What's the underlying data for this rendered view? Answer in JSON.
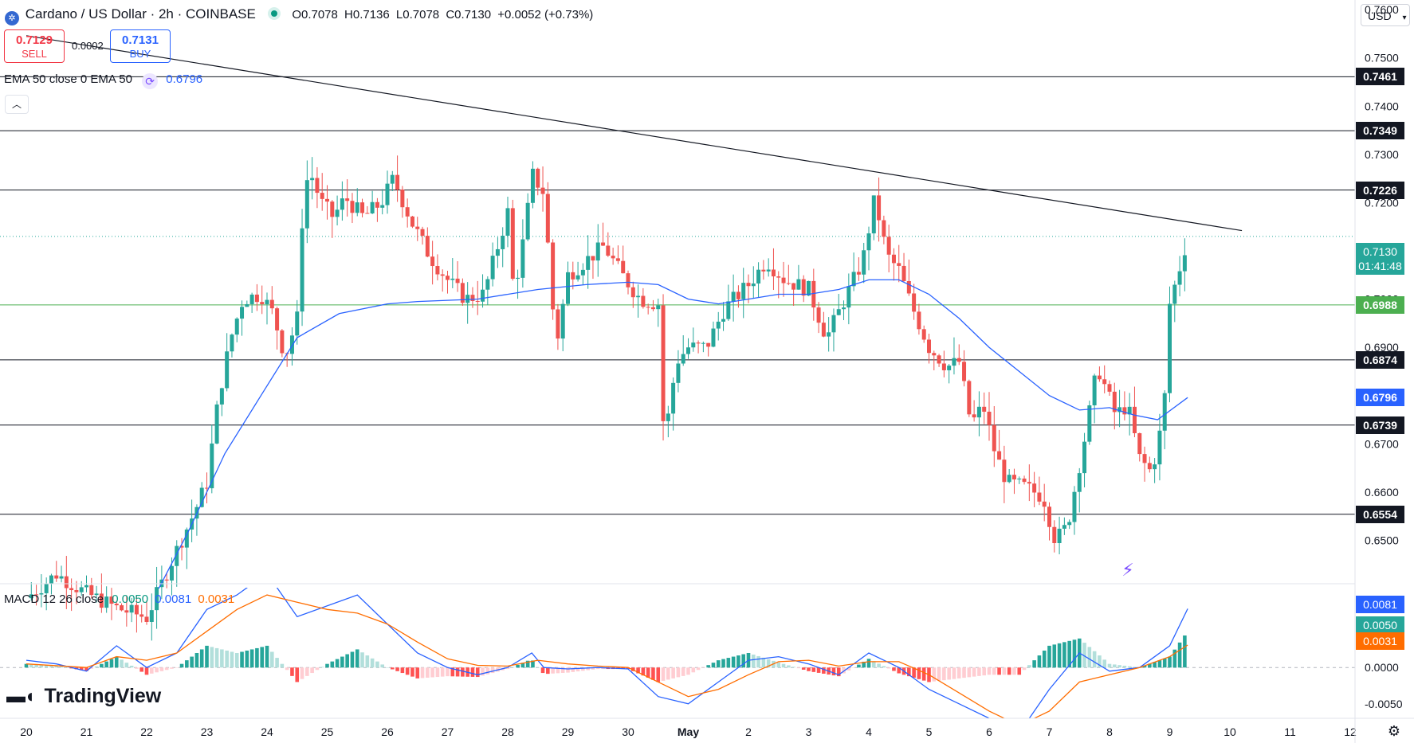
{
  "header": {
    "title": "Cardano / US Dollar · 2h · COINBASE",
    "ohlc": {
      "o": "O0.7078",
      "h": "H0.7136",
      "l": "L0.7078",
      "c": "C0.7130",
      "chg": "+0.0052 (+0.73%)"
    },
    "sell_price": "0.7129",
    "sell_label": "SELL",
    "spread": "0.0002",
    "buy_price": "0.7131",
    "buy_label": "BUY",
    "currency": "USD"
  },
  "ema_legend": {
    "label": "EMA 50 close 0 EMA 50",
    "value": "0.6796"
  },
  "macd_legend": {
    "label": "MACD 12 26 close",
    "hist": "0.0050",
    "macd": "0.0081",
    "signal": "0.0031"
  },
  "current": {
    "price": "0.7130",
    "countdown": "01:41:48"
  },
  "logo_text": "TradingView",
  "colors": {
    "up": "#26a69a",
    "down": "#ef5350",
    "ema": "#2962ff",
    "signal": "#ff6d00"
  },
  "chart_data": {
    "type": "candlestick",
    "ylim": [
      0.641,
      0.762
    ],
    "y_ticks": [
      "0.7600",
      "0.7500",
      "0.7400",
      "0.7300",
      "0.7200",
      "0.7000",
      "0.6900",
      "0.6700",
      "0.6600",
      "0.6500"
    ],
    "x_labels": [
      "20",
      "21",
      "22",
      "23",
      "24",
      "25",
      "26",
      "27",
      "28",
      "29",
      "30",
      "May",
      "2",
      "3",
      "4",
      "5",
      "6",
      "7",
      "8",
      "9",
      "10",
      "11",
      "12"
    ],
    "h_levels": [
      {
        "value": 0.7461,
        "label": "0.7461"
      },
      {
        "value": 0.7349,
        "label": "0.7349"
      },
      {
        "value": 0.7226,
        "label": "0.7226"
      },
      {
        "value": 0.6988,
        "label": "0.6988"
      },
      {
        "value": 0.6874,
        "label": "0.6874"
      },
      {
        "value": 0.6739,
        "label": "0.6739"
      },
      {
        "value": 0.6554,
        "label": "0.6554"
      }
    ],
    "ema_tag": {
      "value": 0.6796,
      "label": "0.6796"
    },
    "price_path": [
      [
        20.0,
        0.638
      ],
      [
        20.5,
        0.643
      ],
      [
        21.0,
        0.639
      ],
      [
        21.5,
        0.636
      ],
      [
        22.0,
        0.634
      ],
      [
        22.5,
        0.648
      ],
      [
        22.8,
        0.656
      ],
      [
        23.0,
        0.662
      ],
      [
        23.2,
        0.68
      ],
      [
        23.4,
        0.692
      ],
      [
        23.6,
        0.7
      ],
      [
        23.9,
        0.701
      ],
      [
        24.1,
        0.697
      ],
      [
        24.3,
        0.688
      ],
      [
        24.5,
        0.696
      ],
      [
        24.6,
        0.72
      ],
      [
        24.7,
        0.727
      ],
      [
        24.9,
        0.72
      ],
      [
        25.1,
        0.717
      ],
      [
        25.3,
        0.721
      ],
      [
        25.6,
        0.717
      ],
      [
        25.9,
        0.72
      ],
      [
        26.1,
        0.725
      ],
      [
        26.4,
        0.716
      ],
      [
        26.7,
        0.709
      ],
      [
        27.0,
        0.704
      ],
      [
        27.3,
        0.7
      ],
      [
        27.6,
        0.701
      ],
      [
        28.0,
        0.718
      ],
      [
        28.1,
        0.701
      ],
      [
        28.3,
        0.715
      ],
      [
        28.4,
        0.726
      ],
      [
        28.6,
        0.722
      ],
      [
        28.8,
        0.69
      ],
      [
        29.0,
        0.705
      ],
      [
        29.3,
        0.708
      ],
      [
        29.6,
        0.711
      ],
      [
        29.9,
        0.705
      ],
      [
        30.2,
        0.7
      ],
      [
        30.5,
        0.699
      ],
      [
        30.6,
        0.67
      ],
      [
        30.8,
        0.687
      ],
      [
        31.0,
        0.69
      ],
      [
        31.3,
        0.69
      ],
      [
        31.6,
        0.698
      ],
      [
        32.0,
        0.703
      ],
      [
        32.3,
        0.708
      ],
      [
        32.6,
        0.704
      ],
      [
        33.0,
        0.702
      ],
      [
        33.3,
        0.692
      ],
      [
        33.6,
        0.7
      ],
      [
        33.9,
        0.708
      ],
      [
        34.1,
        0.721
      ],
      [
        34.3,
        0.709
      ],
      [
        34.5,
        0.706
      ],
      [
        34.7,
        0.699
      ],
      [
        35.0,
        0.69
      ],
      [
        35.3,
        0.686
      ],
      [
        35.5,
        0.687
      ],
      [
        35.7,
        0.674
      ],
      [
        35.9,
        0.678
      ],
      [
        36.1,
        0.668
      ],
      [
        36.3,
        0.662
      ],
      [
        36.6,
        0.661
      ],
      [
        36.9,
        0.659
      ],
      [
        37.1,
        0.65
      ],
      [
        37.3,
        0.653
      ],
      [
        37.6,
        0.672
      ],
      [
        37.8,
        0.686
      ],
      [
        38.1,
        0.676
      ],
      [
        38.3,
        0.678
      ],
      [
        38.5,
        0.667
      ],
      [
        38.7,
        0.664
      ],
      [
        38.9,
        0.676
      ],
      [
        39.0,
        0.699
      ],
      [
        39.2,
        0.708
      ],
      [
        39.3,
        0.713
      ]
    ],
    "ema_path": [
      [
        22.2,
        0.64
      ],
      [
        22.7,
        0.652
      ],
      [
        23.3,
        0.668
      ],
      [
        23.9,
        0.68
      ],
      [
        24.5,
        0.692
      ],
      [
        25.2,
        0.697
      ],
      [
        26.0,
        0.699
      ],
      [
        26.5,
        0.6995
      ],
      [
        27.5,
        0.7
      ],
      [
        28.5,
        0.702
      ],
      [
        29.3,
        0.703
      ],
      [
        30.0,
        0.7035
      ],
      [
        30.5,
        0.703
      ],
      [
        31.0,
        0.7
      ],
      [
        31.5,
        0.699
      ],
      [
        32.0,
        0.7
      ],
      [
        32.5,
        0.701
      ],
      [
        33.0,
        0.701
      ],
      [
        33.5,
        0.702
      ],
      [
        34.0,
        0.704
      ],
      [
        34.5,
        0.704
      ],
      [
        35.0,
        0.701
      ],
      [
        35.5,
        0.696
      ],
      [
        36.0,
        0.69
      ],
      [
        36.5,
        0.685
      ],
      [
        37.0,
        0.68
      ],
      [
        37.5,
        0.677
      ],
      [
        38.0,
        0.6775
      ],
      [
        38.4,
        0.676
      ],
      [
        38.8,
        0.675
      ],
      [
        39.3,
        0.6796
      ]
    ],
    "trendline": [
      [
        20.0,
        0.7546
      ],
      [
        40.2,
        0.7142
      ]
    ],
    "macd": {
      "ylim": [
        -0.007,
        0.011
      ],
      "y_ticks": [
        "0.0000",
        "-0.0050"
      ],
      "macd_path": [
        [
          20.0,
          0.001
        ],
        [
          20.5,
          0.0005
        ],
        [
          21.0,
          -0.0005
        ],
        [
          21.5,
          0.003
        ],
        [
          22.0,
          0.0
        ],
        [
          22.5,
          0.002
        ],
        [
          23.0,
          0.008
        ],
        [
          23.5,
          0.01
        ],
        [
          24.0,
          0.013
        ],
        [
          24.5,
          0.007
        ],
        [
          25.5,
          0.01
        ],
        [
          26.0,
          0.006
        ],
        [
          26.5,
          0.002
        ],
        [
          27.0,
          0.0
        ],
        [
          27.5,
          -0.001
        ],
        [
          28.0,
          0.0
        ],
        [
          28.4,
          0.002
        ],
        [
          28.6,
          0.0
        ],
        [
          29.0,
          -0.0002
        ],
        [
          29.5,
          0.0
        ],
        [
          30.0,
          -0.0002
        ],
        [
          30.5,
          -0.004
        ],
        [
          31.0,
          -0.005
        ],
        [
          31.5,
          -0.002
        ],
        [
          32.0,
          0.001
        ],
        [
          32.5,
          0.0015
        ],
        [
          33.0,
          0.0005
        ],
        [
          33.5,
          -0.001
        ],
        [
          34.0,
          0.002
        ],
        [
          34.5,
          0.0
        ],
        [
          35.0,
          -0.003
        ],
        [
          35.5,
          -0.005
        ],
        [
          36.0,
          -0.007
        ],
        [
          36.5,
          -0.009
        ],
        [
          37.0,
          -0.003
        ],
        [
          37.5,
          0.002
        ],
        [
          38.0,
          -0.0005
        ],
        [
          38.5,
          0.0
        ],
        [
          39.0,
          0.003
        ],
        [
          39.3,
          0.0081
        ]
      ],
      "signal_path": [
        [
          20.0,
          0.0005
        ],
        [
          21.0,
          0.0
        ],
        [
          21.5,
          0.0015
        ],
        [
          22.0,
          0.001
        ],
        [
          22.5,
          0.002
        ],
        [
          23.0,
          0.005
        ],
        [
          23.5,
          0.008
        ],
        [
          24.0,
          0.01
        ],
        [
          24.5,
          0.009
        ],
        [
          25.0,
          0.008
        ],
        [
          25.5,
          0.0075
        ],
        [
          26.0,
          0.006
        ],
        [
          26.5,
          0.0035
        ],
        [
          27.0,
          0.0012
        ],
        [
          27.5,
          0.0003
        ],
        [
          28.0,
          0.0002
        ],
        [
          28.5,
          0.001
        ],
        [
          29.0,
          0.0005
        ],
        [
          29.5,
          0.0002
        ],
        [
          30.0,
          0.0
        ],
        [
          30.5,
          -0.002
        ],
        [
          31.0,
          -0.004
        ],
        [
          31.5,
          -0.003
        ],
        [
          32.0,
          -0.001
        ],
        [
          32.5,
          0.0008
        ],
        [
          33.0,
          0.001
        ],
        [
          33.5,
          0.0002
        ],
        [
          34.0,
          0.0008
        ],
        [
          34.5,
          0.0008
        ],
        [
          35.0,
          -0.001
        ],
        [
          35.5,
          -0.0035
        ],
        [
          36.0,
          -0.006
        ],
        [
          36.5,
          -0.008
        ],
        [
          37.0,
          -0.006
        ],
        [
          37.5,
          -0.002
        ],
        [
          38.0,
          -0.001
        ],
        [
          38.5,
          0.0
        ],
        [
          39.0,
          0.0015
        ],
        [
          39.3,
          0.0031
        ]
      ],
      "histogram_last": 0.005
    }
  }
}
